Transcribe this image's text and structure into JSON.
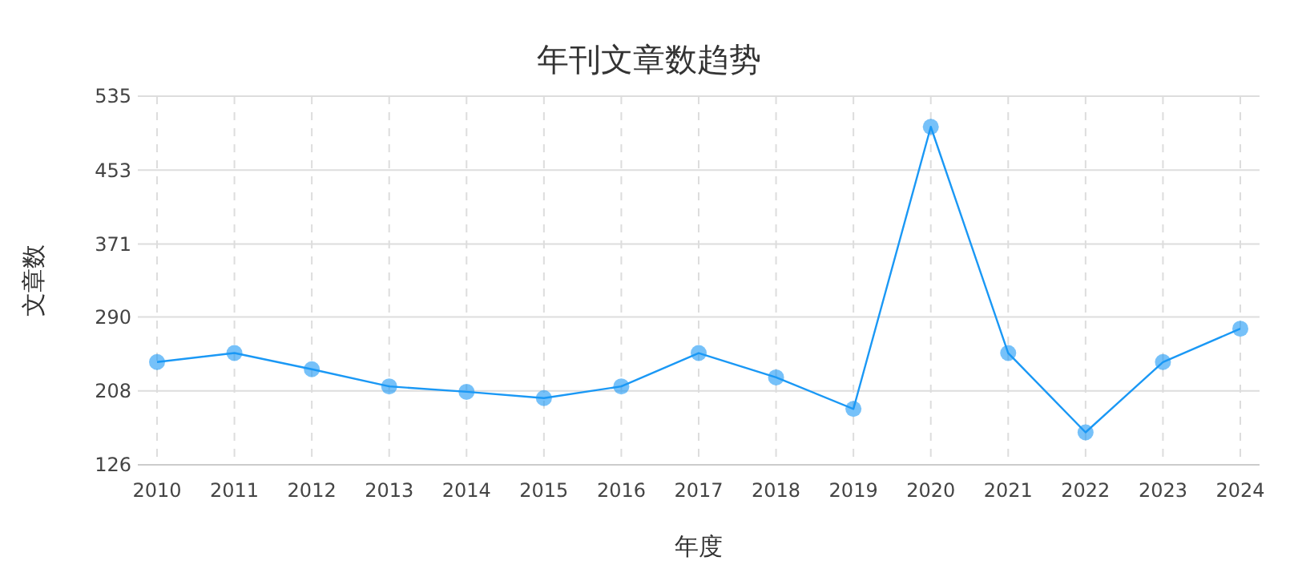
{
  "chart_data": {
    "type": "line",
    "title": "年刊文章数趋势",
    "xlabel": "年度",
    "ylabel": "文章数",
    "categories": [
      "2010",
      "2011",
      "2012",
      "2013",
      "2014",
      "2015",
      "2016",
      "2017",
      "2018",
      "2019",
      "2020",
      "2021",
      "2022",
      "2023",
      "2024"
    ],
    "series": [
      {
        "color": "#1a98f5",
        "values": [
          240,
          250,
          232,
          213,
          207,
          200,
          213,
          250,
          223,
          188,
          501,
          250,
          162,
          240,
          277
        ]
      }
    ],
    "ylim": [
      126,
      535
    ],
    "yticks": [
      126,
      208,
      290,
      371,
      453,
      535
    ],
    "grid": true,
    "marker": "circle",
    "line_style": "solid"
  }
}
